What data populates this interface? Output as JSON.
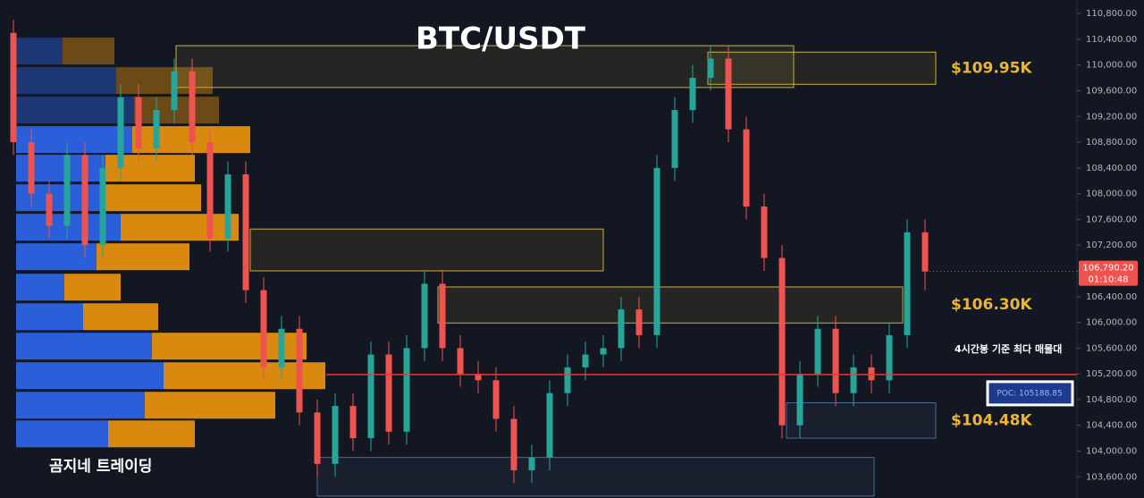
{
  "chart_data": {
    "type": "candlestick",
    "title": "BTC/USDT",
    "watermark": "곰지네 트레이딩",
    "ylim": [
      103270,
      111010
    ],
    "yticks": [
      {
        "value": 103600,
        "label": "103,600.00"
      },
      {
        "value": 104000,
        "label": "104,000.00"
      },
      {
        "value": 104400,
        "label": "104,400.00"
      },
      {
        "value": 104800,
        "label": "104,800.00"
      },
      {
        "value": 105200,
        "label": "105,200.00"
      },
      {
        "value": 105600,
        "label": "105,600.00"
      },
      {
        "value": 106000,
        "label": "106,000.00"
      },
      {
        "value": 106400,
        "label": "106,400.00"
      },
      {
        "value": 106800,
        "label": "106,800.00"
      },
      {
        "value": 107200,
        "label": "107,200.00"
      },
      {
        "value": 107600,
        "label": "107,600.00"
      },
      {
        "value": 108000,
        "label": "108,000.00"
      },
      {
        "value": 108400,
        "label": "108,400.00"
      },
      {
        "value": 108800,
        "label": "108,800.00"
      },
      {
        "value": 109200,
        "label": "109,200.00"
      },
      {
        "value": 109600,
        "label": "109,600.00"
      },
      {
        "value": 110000,
        "label": "110,000.00"
      },
      {
        "value": 110400,
        "label": "110,400.00"
      },
      {
        "value": 110800,
        "label": "110,800.00"
      }
    ],
    "up_color": "#26a69a",
    "down_color": "#ef5350",
    "open": [
      110500,
      108800,
      108000,
      107500,
      108600,
      107200,
      108400,
      109500,
      108700,
      109300,
      109900,
      108800,
      107300,
      108300,
      106500,
      105300,
      105900,
      104600,
      103800,
      104700,
      104200,
      105500,
      104300,
      105600,
      106600,
      105600,
      105200,
      105100,
      104500,
      103700,
      103900,
      104900,
      105300,
      105500,
      105600,
      106200,
      105800,
      108400,
      109300,
      109800,
      110100,
      109000,
      107800,
      107000,
      104400,
      105200,
      105900,
      104900,
      105300,
      105100,
      105800,
      107400
    ],
    "high": [
      110700,
      109000,
      108200,
      108800,
      108800,
      108600,
      109700,
      109700,
      109500,
      110100,
      110100,
      109000,
      108500,
      108500,
      106700,
      106100,
      106100,
      104800,
      104900,
      104900,
      105700,
      105700,
      105800,
      106800,
      106800,
      105800,
      105400,
      105300,
      104700,
      104100,
      105100,
      105500,
      105700,
      105800,
      106400,
      106400,
      108600,
      109500,
      110000,
      110300,
      110300,
      109200,
      108000,
      107200,
      105400,
      106100,
      106100,
      105500,
      105500,
      106000,
      107600,
      107600
    ],
    "low": [
      108600,
      107800,
      107300,
      107300,
      107000,
      107000,
      108200,
      108500,
      108500,
      109100,
      108600,
      107100,
      107100,
      106300,
      105100,
      105100,
      104400,
      103600,
      103600,
      104000,
      104000,
      104100,
      104100,
      105400,
      105400,
      105000,
      104900,
      104300,
      103500,
      103500,
      103700,
      104700,
      105100,
      105300,
      105400,
      105600,
      105600,
      108200,
      109100,
      109600,
      108800,
      107600,
      106800,
      104200,
      104200,
      105000,
      104700,
      104700,
      104900,
      104900,
      105600,
      106500
    ],
    "close": [
      108800,
      108000,
      107500,
      108600,
      107200,
      108400,
      109500,
      108700,
      109300,
      109900,
      108800,
      107300,
      108300,
      106500,
      105300,
      105900,
      104600,
      103800,
      104700,
      104200,
      105500,
      104300,
      105600,
      106600,
      105600,
      105200,
      105100,
      104500,
      103700,
      103900,
      104900,
      105300,
      105500,
      105600,
      106200,
      105800,
      108400,
      109300,
      109800,
      110100,
      109000,
      107800,
      107000,
      104400,
      105200,
      105900,
      104900,
      105300,
      105100,
      105800,
      107400,
      106790.2
    ],
    "last_price": 106790.2,
    "last_price_label": "106,790.20",
    "countdown": "01:10:48",
    "zones": [
      {
        "high": 110300,
        "low": 109650,
        "color": "#c9b03a"
      },
      {
        "high": 110200,
        "low": 109700,
        "color": "#c9b03a",
        "label": "$109.95K"
      },
      {
        "high": 107450,
        "low": 106800,
        "color": "#c9b03a"
      },
      {
        "high": 106550,
        "low": 105990,
        "color": "#c9b03a",
        "label": "$106.30K"
      },
      {
        "high": 104750,
        "low": 104200,
        "color": "#4a6b96",
        "label": "$104.48K"
      },
      {
        "high": 103900,
        "low": 103300,
        "color": "#4a6b96"
      }
    ],
    "poc": 105188.85,
    "poc_label": "POC: 105188.85",
    "poc_note": "4시간봉 기준 최다 매물대",
    "poc_color": "#e53935",
    "volume_profile": {
      "levels": [
        110425,
        109966,
        109507,
        109049,
        108604,
        108145,
        107686,
        107228,
        106755,
        106296,
        105838,
        105379,
        104920,
        104475
      ],
      "buy": [
        52,
        112,
        132,
        130,
        100,
        100,
        117,
        90,
        54,
        75,
        152,
        165,
        144,
        103
      ],
      "sell": [
        58,
        108,
        95,
        132,
        100,
        107,
        132,
        104,
        63,
        84,
        173,
        181,
        146,
        97
      ],
      "buy_color": "#2b5fd9",
      "sell_color": "#d98a0e"
    }
  }
}
